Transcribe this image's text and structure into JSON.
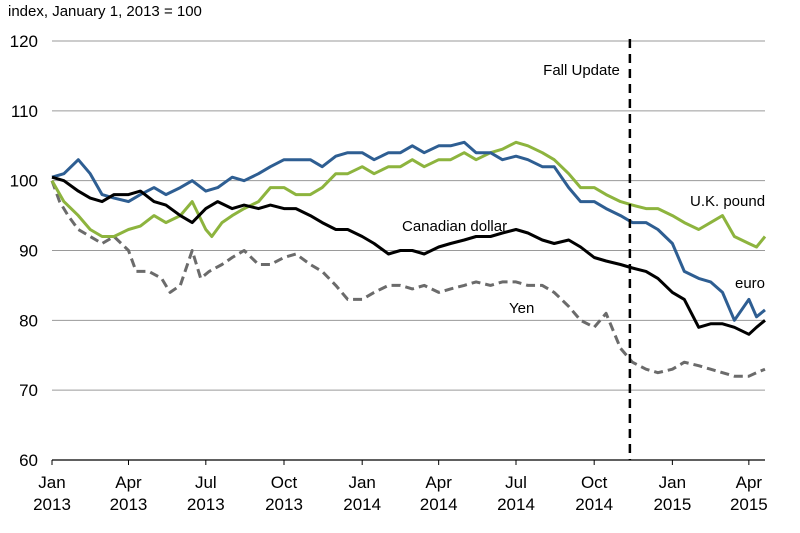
{
  "chart_data": {
    "type": "line",
    "ylabel": "index, January 1, 2013 = 100",
    "ylim": [
      60,
      120
    ],
    "yticks": [
      60,
      70,
      80,
      90,
      100,
      110,
      120
    ],
    "xlim": [
      "2013-01-01",
      "2015-04-20"
    ],
    "xticks": [
      {
        "date": "2013-01-01",
        "month": "Jan",
        "year": "2013"
      },
      {
        "date": "2013-04-01",
        "month": "Apr",
        "year": "2013"
      },
      {
        "date": "2013-07-01",
        "month": "Jul",
        "year": "2013"
      },
      {
        "date": "2013-10-01",
        "month": "Oct",
        "year": "2013"
      },
      {
        "date": "2014-01-01",
        "month": "Jan",
        "year": "2014"
      },
      {
        "date": "2014-04-01",
        "month": "Apr",
        "year": "2014"
      },
      {
        "date": "2014-07-01",
        "month": "Jul",
        "year": "2014"
      },
      {
        "date": "2014-10-01",
        "month": "Oct",
        "year": "2014"
      },
      {
        "date": "2015-01-01",
        "month": "Jan",
        "year": "2015"
      },
      {
        "date": "2015-04-01",
        "month": "Apr",
        "year": "2015"
      }
    ],
    "grid": "horizontal",
    "annotations": [
      {
        "label": "Fall Update",
        "date": "2014-11-12",
        "style": "dashed-vertical"
      }
    ],
    "series": [
      {
        "name": "U.K. pound",
        "color": "#8db43e",
        "style": "solid",
        "points": [
          [
            "2013-01-01",
            100
          ],
          [
            "2013-01-15",
            97
          ],
          [
            "2013-02-01",
            95
          ],
          [
            "2013-02-15",
            93
          ],
          [
            "2013-03-01",
            92
          ],
          [
            "2013-03-15",
            92
          ],
          [
            "2013-04-01",
            93
          ],
          [
            "2013-04-15",
            93.5
          ],
          [
            "2013-05-01",
            95
          ],
          [
            "2013-05-15",
            94
          ],
          [
            "2013-06-01",
            95
          ],
          [
            "2013-06-15",
            97
          ],
          [
            "2013-07-01",
            93
          ],
          [
            "2013-07-08",
            92
          ],
          [
            "2013-07-20",
            94
          ],
          [
            "2013-08-01",
            95
          ],
          [
            "2013-08-15",
            96
          ],
          [
            "2013-09-01",
            97
          ],
          [
            "2013-09-15",
            99
          ],
          [
            "2013-10-01",
            99
          ],
          [
            "2013-10-15",
            98
          ],
          [
            "2013-11-01",
            98
          ],
          [
            "2013-11-15",
            99
          ],
          [
            "2013-12-01",
            101
          ],
          [
            "2013-12-15",
            101
          ],
          [
            "2014-01-01",
            102
          ],
          [
            "2014-01-15",
            101
          ],
          [
            "2014-02-01",
            102
          ],
          [
            "2014-02-15",
            102
          ],
          [
            "2014-03-01",
            103
          ],
          [
            "2014-03-15",
            102
          ],
          [
            "2014-04-01",
            103
          ],
          [
            "2014-04-15",
            103
          ],
          [
            "2014-05-01",
            104
          ],
          [
            "2014-05-15",
            103
          ],
          [
            "2014-06-01",
            104
          ],
          [
            "2014-06-15",
            104.5
          ],
          [
            "2014-07-01",
            105.5
          ],
          [
            "2014-07-15",
            105
          ],
          [
            "2014-08-01",
            104
          ],
          [
            "2014-08-15",
            103
          ],
          [
            "2014-09-01",
            101
          ],
          [
            "2014-09-15",
            99
          ],
          [
            "2014-10-01",
            99
          ],
          [
            "2014-10-15",
            98
          ],
          [
            "2014-11-01",
            97
          ],
          [
            "2014-11-15",
            96.5
          ],
          [
            "2014-12-01",
            96
          ],
          [
            "2014-12-15",
            96
          ],
          [
            "2015-01-01",
            95
          ],
          [
            "2015-01-15",
            94
          ],
          [
            "2015-02-01",
            93
          ],
          [
            "2015-02-15",
            94
          ],
          [
            "2015-03-01",
            95
          ],
          [
            "2015-03-15",
            92
          ],
          [
            "2015-04-01",
            91
          ],
          [
            "2015-04-10",
            90.5
          ],
          [
            "2015-04-20",
            92
          ]
        ]
      },
      {
        "name": "euro",
        "color": "#2e5e92",
        "style": "solid",
        "points": [
          [
            "2013-01-01",
            100.5
          ],
          [
            "2013-01-15",
            101
          ],
          [
            "2013-02-01",
            103
          ],
          [
            "2013-02-15",
            101
          ],
          [
            "2013-03-01",
            98
          ],
          [
            "2013-03-15",
            97.5
          ],
          [
            "2013-04-01",
            97
          ],
          [
            "2013-04-15",
            98
          ],
          [
            "2013-05-01",
            99
          ],
          [
            "2013-05-15",
            98
          ],
          [
            "2013-06-01",
            99
          ],
          [
            "2013-06-15",
            100
          ],
          [
            "2013-07-01",
            98.5
          ],
          [
            "2013-07-15",
            99
          ],
          [
            "2013-08-01",
            100.5
          ],
          [
            "2013-08-15",
            100
          ],
          [
            "2013-09-01",
            101
          ],
          [
            "2013-09-15",
            102
          ],
          [
            "2013-10-01",
            103
          ],
          [
            "2013-10-15",
            103
          ],
          [
            "2013-11-01",
            103
          ],
          [
            "2013-11-15",
            102
          ],
          [
            "2013-12-01",
            103.5
          ],
          [
            "2013-12-15",
            104
          ],
          [
            "2014-01-01",
            104
          ],
          [
            "2014-01-15",
            103
          ],
          [
            "2014-02-01",
            104
          ],
          [
            "2014-02-15",
            104
          ],
          [
            "2014-03-01",
            105
          ],
          [
            "2014-03-15",
            104
          ],
          [
            "2014-04-01",
            105
          ],
          [
            "2014-04-15",
            105
          ],
          [
            "2014-05-01",
            105.5
          ],
          [
            "2014-05-15",
            104
          ],
          [
            "2014-06-01",
            104
          ],
          [
            "2014-06-15",
            103
          ],
          [
            "2014-07-01",
            103.5
          ],
          [
            "2014-07-15",
            103
          ],
          [
            "2014-08-01",
            102
          ],
          [
            "2014-08-15",
            102
          ],
          [
            "2014-09-01",
            99
          ],
          [
            "2014-09-15",
            97
          ],
          [
            "2014-10-01",
            97
          ],
          [
            "2014-10-15",
            96
          ],
          [
            "2014-11-01",
            95
          ],
          [
            "2014-11-15",
            94
          ],
          [
            "2014-12-01",
            94
          ],
          [
            "2014-12-15",
            93
          ],
          [
            "2015-01-01",
            91
          ],
          [
            "2015-01-15",
            87
          ],
          [
            "2015-02-01",
            86
          ],
          [
            "2015-02-15",
            85.5
          ],
          [
            "2015-03-01",
            84
          ],
          [
            "2015-03-15",
            80
          ],
          [
            "2015-04-01",
            83
          ],
          [
            "2015-04-10",
            80.5
          ],
          [
            "2015-04-20",
            81.5
          ]
        ]
      },
      {
        "name": "Canadian dollar",
        "color": "#000000",
        "style": "solid",
        "points": [
          [
            "2013-01-01",
            100.5
          ],
          [
            "2013-01-15",
            100
          ],
          [
            "2013-02-01",
            98.5
          ],
          [
            "2013-02-15",
            97.5
          ],
          [
            "2013-03-01",
            97
          ],
          [
            "2013-03-15",
            98
          ],
          [
            "2013-04-01",
            98
          ],
          [
            "2013-04-15",
            98.5
          ],
          [
            "2013-05-01",
            97
          ],
          [
            "2013-05-15",
            96.5
          ],
          [
            "2013-06-01",
            95
          ],
          [
            "2013-06-15",
            94
          ],
          [
            "2013-07-01",
            96
          ],
          [
            "2013-07-15",
            97
          ],
          [
            "2013-08-01",
            96
          ],
          [
            "2013-08-15",
            96.5
          ],
          [
            "2013-09-01",
            96
          ],
          [
            "2013-09-15",
            96.5
          ],
          [
            "2013-10-01",
            96
          ],
          [
            "2013-10-15",
            96
          ],
          [
            "2013-11-01",
            95
          ],
          [
            "2013-11-15",
            94
          ],
          [
            "2013-12-01",
            93
          ],
          [
            "2013-12-15",
            93
          ],
          [
            "2014-01-01",
            92
          ],
          [
            "2014-01-15",
            91
          ],
          [
            "2014-02-01",
            89.5
          ],
          [
            "2014-02-15",
            90
          ],
          [
            "2014-03-01",
            90
          ],
          [
            "2014-03-15",
            89.5
          ],
          [
            "2014-04-01",
            90.5
          ],
          [
            "2014-04-15",
            91
          ],
          [
            "2014-05-01",
            91.5
          ],
          [
            "2014-05-15",
            92
          ],
          [
            "2014-06-01",
            92
          ],
          [
            "2014-06-15",
            92.5
          ],
          [
            "2014-07-01",
            93
          ],
          [
            "2014-07-15",
            92.5
          ],
          [
            "2014-08-01",
            91.5
          ],
          [
            "2014-08-15",
            91
          ],
          [
            "2014-09-01",
            91.5
          ],
          [
            "2014-09-15",
            90.5
          ],
          [
            "2014-10-01",
            89
          ],
          [
            "2014-10-15",
            88.5
          ],
          [
            "2014-11-01",
            88
          ],
          [
            "2014-11-15",
            87.5
          ],
          [
            "2014-12-01",
            87
          ],
          [
            "2014-12-15",
            86
          ],
          [
            "2015-01-01",
            84
          ],
          [
            "2015-01-15",
            83
          ],
          [
            "2015-02-01",
            79
          ],
          [
            "2015-02-15",
            79.5
          ],
          [
            "2015-03-01",
            79.5
          ],
          [
            "2015-03-15",
            79
          ],
          [
            "2015-04-01",
            78
          ],
          [
            "2015-04-10",
            79
          ],
          [
            "2015-04-20",
            80
          ]
        ]
      },
      {
        "name": "Yen",
        "color": "#6b6b6b",
        "style": "dashed",
        "points": [
          [
            "2013-01-01",
            100
          ],
          [
            "2013-01-10",
            97
          ],
          [
            "2013-01-20",
            95
          ],
          [
            "2013-02-01",
            93
          ],
          [
            "2013-02-15",
            92
          ],
          [
            "2013-03-01",
            91
          ],
          [
            "2013-03-15",
            92
          ],
          [
            "2013-04-01",
            90
          ],
          [
            "2013-04-10",
            87
          ],
          [
            "2013-04-25",
            87
          ],
          [
            "2013-05-10",
            86
          ],
          [
            "2013-05-20",
            84
          ],
          [
            "2013-06-01",
            85
          ],
          [
            "2013-06-15",
            90
          ],
          [
            "2013-06-25",
            86
          ],
          [
            "2013-07-05",
            87
          ],
          [
            "2013-07-20",
            88
          ],
          [
            "2013-08-01",
            89
          ],
          [
            "2013-08-15",
            90
          ],
          [
            "2013-09-01",
            88
          ],
          [
            "2013-09-15",
            88
          ],
          [
            "2013-10-01",
            89
          ],
          [
            "2013-10-15",
            89.5
          ],
          [
            "2013-11-01",
            88
          ],
          [
            "2013-11-15",
            87
          ],
          [
            "2013-12-01",
            85
          ],
          [
            "2013-12-15",
            83
          ],
          [
            "2014-01-01",
            83
          ],
          [
            "2014-01-15",
            84
          ],
          [
            "2014-02-01",
            85
          ],
          [
            "2014-02-15",
            85
          ],
          [
            "2014-03-01",
            84.5
          ],
          [
            "2014-03-15",
            85
          ],
          [
            "2014-04-01",
            84
          ],
          [
            "2014-04-15",
            84.5
          ],
          [
            "2014-05-01",
            85
          ],
          [
            "2014-05-15",
            85.5
          ],
          [
            "2014-06-01",
            85
          ],
          [
            "2014-06-15",
            85.5
          ],
          [
            "2014-07-01",
            85.5
          ],
          [
            "2014-07-15",
            85
          ],
          [
            "2014-08-01",
            85
          ],
          [
            "2014-08-15",
            84
          ],
          [
            "2014-09-01",
            82
          ],
          [
            "2014-09-15",
            80
          ],
          [
            "2014-10-01",
            79
          ],
          [
            "2014-10-15",
            81
          ],
          [
            "2014-11-01",
            76
          ],
          [
            "2014-11-15",
            74
          ],
          [
            "2014-12-01",
            73
          ],
          [
            "2014-12-15",
            72.5
          ],
          [
            "2015-01-01",
            73
          ],
          [
            "2015-01-15",
            74
          ],
          [
            "2015-02-01",
            73.5
          ],
          [
            "2015-02-15",
            73
          ],
          [
            "2015-03-01",
            72.5
          ],
          [
            "2015-03-15",
            72
          ],
          [
            "2015-04-01",
            72
          ],
          [
            "2015-04-10",
            72.5
          ],
          [
            "2015-04-20",
            73
          ]
        ]
      }
    ],
    "series_labels": [
      {
        "series": "U.K. pound",
        "text": "U.K. pound"
      },
      {
        "series": "euro",
        "text": "euro"
      },
      {
        "series": "Canadian dollar",
        "text": "Canadian dollar"
      },
      {
        "series": "Yen",
        "text": "Yen"
      }
    ]
  }
}
